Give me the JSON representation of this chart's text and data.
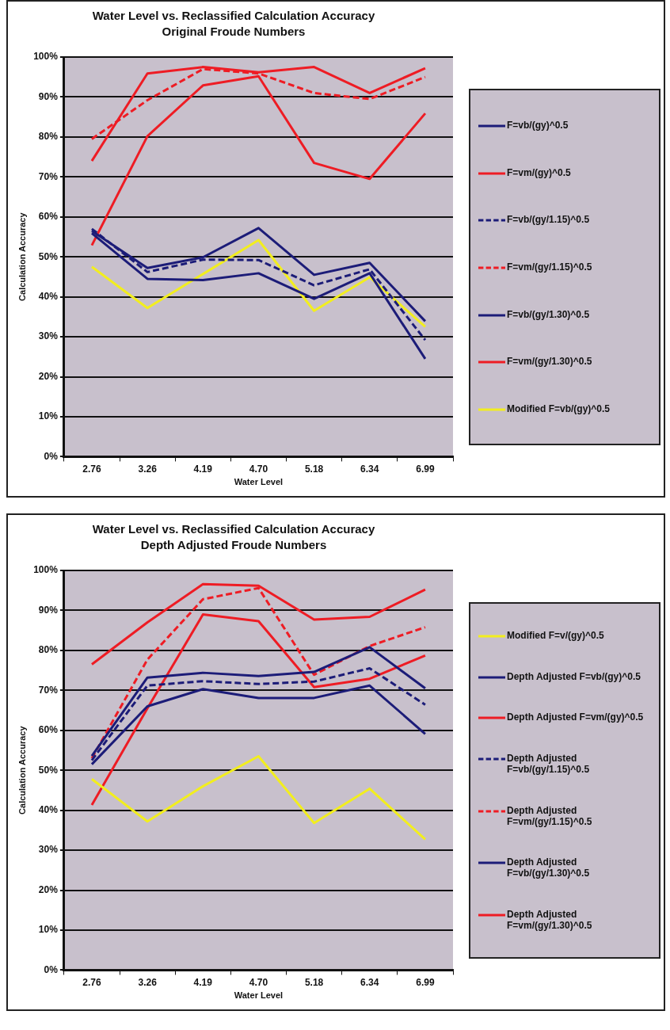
{
  "chart_data": [
    {
      "type": "line",
      "title": "Water Level vs. Reclassified Calculation Accuracy",
      "subtitle": "Original Froude Numbers",
      "xlabel": "Water Level",
      "ylabel": "Calculation Accuracy",
      "categories": [
        "2.76",
        "3.26",
        "4.19",
        "4.70",
        "5.18",
        "6.34",
        "6.99"
      ],
      "ylim": [
        0,
        100
      ],
      "yticks": [
        {
          "value": 0,
          "label": "0%"
        },
        {
          "value": 10,
          "label": "10%"
        },
        {
          "value": 20,
          "label": "20%"
        },
        {
          "value": 30,
          "label": "30%"
        },
        {
          "value": 40,
          "label": "40%"
        },
        {
          "value": 50,
          "label": "50%"
        },
        {
          "value": 60,
          "label": "60%"
        },
        {
          "value": 70,
          "label": "70%"
        },
        {
          "value": 80,
          "label": "80%"
        },
        {
          "value": 90,
          "label": "90%"
        },
        {
          "value": 100,
          "label": "100%"
        }
      ],
      "grid": "y",
      "legend": "right",
      "marker": "none",
      "series": [
        {
          "name": "F=vb/(gy)^0.5",
          "color": "#1c1c78",
          "values": [
            56.5,
            47.2,
            49.9,
            57.2,
            45.5,
            48.5,
            33.9
          ]
        },
        {
          "name": "F=vm/(gy)^0.5",
          "color": "#ee1c24",
          "values": [
            74,
            95.9,
            97.5,
            96.2,
            97.5,
            91,
            97.2
          ]
        },
        {
          "name": "F=vb/(gy/1.15)^0.5",
          "color": "#1c1c78",
          "line_style": "dashed",
          "values": [
            57,
            46.2,
            49.3,
            49.2,
            42.9,
            46.9,
            29.2
          ]
        },
        {
          "name": "F=vm/(gy/1.15)^0.5",
          "color": "#ee1c24",
          "line_style": "dashed",
          "values": [
            79.5,
            89.2,
            97,
            95.9,
            91,
            89.5,
            95
          ]
        },
        {
          "name": "F=vb/(gy/1.30)^0.5",
          "color": "#1c1c78",
          "values": [
            55.9,
            44.5,
            44.2,
            45.9,
            39.5,
            45.9,
            24.5
          ]
        },
        {
          "name": "F=vm/(gy/1.30)^0.5",
          "color": "#ee1c24",
          "values": [
            52.9,
            80.2,
            92.9,
            95.2,
            73.5,
            69.5,
            85.9
          ]
        },
        {
          "name": "Modified F=vb/(gy)^0.5",
          "color": "#f2ee1e",
          "values": [
            47.5,
            37.2,
            45.7,
            54.2,
            36.5,
            44.9,
            32.5
          ]
        }
      ]
    },
    {
      "type": "line",
      "title": "Water Level vs. Reclassified Calculation Accuracy",
      "subtitle": "Depth Adjusted Froude Numbers",
      "xlabel": "Water Level",
      "ylabel": "Calculation Accuracy",
      "categories": [
        "2.76",
        "3.26",
        "4.19",
        "4.70",
        "5.18",
        "6.34",
        "6.99"
      ],
      "ylim": [
        0,
        100
      ],
      "yticks": [
        {
          "value": 0,
          "label": "0%"
        },
        {
          "value": 10,
          "label": "10%"
        },
        {
          "value": 20,
          "label": "20%"
        },
        {
          "value": 30,
          "label": "30%"
        },
        {
          "value": 40,
          "label": "40%"
        },
        {
          "value": 50,
          "label": "50%"
        },
        {
          "value": 60,
          "label": "60%"
        },
        {
          "value": 70,
          "label": "70%"
        },
        {
          "value": 80,
          "label": "80%"
        },
        {
          "value": 90,
          "label": "90%"
        },
        {
          "value": 100,
          "label": "100%"
        }
      ],
      "grid": "y",
      "legend": "right",
      "marker": "none",
      "series": [
        {
          "name": "Modified F=v/(gy)^0.5",
          "color": "#f2ee1e",
          "values": [
            47.8,
            37.2,
            46,
            53.5,
            36.8,
            45.4,
            32.7
          ]
        },
        {
          "name": "Depth Adjusted F=vb/(gy)^0.5",
          "color": "#1c1c78",
          "values": [
            53.6,
            73.2,
            74.4,
            73.6,
            74.6,
            80.8,
            70.5
          ]
        },
        {
          "name": "Depth Adjusted F=vm/(gy)^0.5",
          "color": "#ee1c24",
          "values": [
            76.5,
            87,
            96.6,
            96.2,
            87.7,
            88.4,
            95.2
          ]
        },
        {
          "name": "Depth Adjusted F=vb/(gy/1.15)^0.5",
          "color": "#1c1c78",
          "line_style": "dashed",
          "values": [
            52.5,
            71.2,
            72.3,
            71.6,
            72.2,
            75.5,
            66.4
          ]
        },
        {
          "name": "Depth Adjusted F=vm/(gy/1.15)^0.5",
          "color": "#ee1c24",
          "line_style": "dashed",
          "values": [
            53,
            77.7,
            92.8,
            95.6,
            73.9,
            81.1,
            85.8
          ]
        },
        {
          "name": "Depth Adjusted F=vb/(gy/1.30)^0.5",
          "color": "#1c1c78",
          "values": [
            51.5,
            66,
            70.3,
            68.1,
            68.1,
            71.2,
            59.1
          ]
        },
        {
          "name": "Depth Adjusted F=vm/(gy/1.30)^0.5",
          "color": "#ee1c24",
          "values": [
            41.3,
            65.5,
            89,
            87.3,
            70.8,
            72.9,
            78.7
          ]
        }
      ]
    }
  ]
}
